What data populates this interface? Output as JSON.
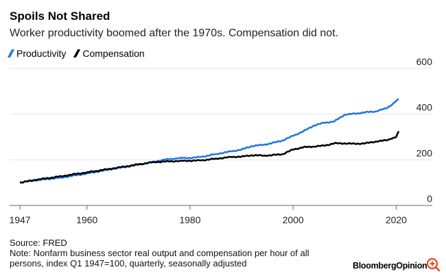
{
  "title": "Spoils Not Shared",
  "subtitle": "Worker productivity boomed after the 1970s. Compensation did not.",
  "source": "Source: FRED",
  "note": "Note: Nonfarm business sector real output and compensation per hour of all persons, index Q1 1947=100, quarterly, seasonally adjusted",
  "logo": "BloombergOpinion",
  "colors": {
    "productivity": "#1f78e6",
    "compensation": "#000000",
    "grid": "#e3e3e3",
    "axis": "#666666"
  },
  "chart_data": {
    "type": "line",
    "title": "Spoils Not Shared",
    "xlabel": "",
    "ylabel": "",
    "xlim": [
      1945,
      2027
    ],
    "ylim": [
      0,
      600
    ],
    "grid": true,
    "legend_position": "top-left",
    "x_ticks": [
      1947,
      1960,
      1980,
      2000,
      2020
    ],
    "y_ticks": [
      0,
      200,
      400,
      600
    ],
    "series": [
      {
        "name": "Productivity",
        "points": [
          [
            1947,
            100
          ],
          [
            1950,
            110
          ],
          [
            1955,
            122
          ],
          [
            1960,
            140
          ],
          [
            1965,
            160
          ],
          [
            1970,
            178
          ],
          [
            1973,
            192
          ],
          [
            1975,
            200
          ],
          [
            1978,
            208
          ],
          [
            1980,
            208
          ],
          [
            1982,
            212
          ],
          [
            1985,
            225
          ],
          [
            1988,
            237
          ],
          [
            1990,
            245
          ],
          [
            1992,
            260
          ],
          [
            1995,
            268
          ],
          [
            1998,
            285
          ],
          [
            2000,
            305
          ],
          [
            2002,
            325
          ],
          [
            2004,
            350
          ],
          [
            2006,
            362
          ],
          [
            2008,
            368
          ],
          [
            2010,
            398
          ],
          [
            2012,
            402
          ],
          [
            2014,
            408
          ],
          [
            2016,
            412
          ],
          [
            2018,
            425
          ],
          [
            2019,
            438
          ],
          [
            2020,
            458
          ],
          [
            2020.5,
            465
          ]
        ]
      },
      {
        "name": "Compensation",
        "points": [
          [
            1947,
            100
          ],
          [
            1950,
            112
          ],
          [
            1955,
            128
          ],
          [
            1960,
            145
          ],
          [
            1965,
            162
          ],
          [
            1970,
            180
          ],
          [
            1973,
            190
          ],
          [
            1975,
            192
          ],
          [
            1978,
            195
          ],
          [
            1980,
            196
          ],
          [
            1982,
            197
          ],
          [
            1985,
            205
          ],
          [
            1988,
            212
          ],
          [
            1990,
            214
          ],
          [
            1992,
            220
          ],
          [
            1995,
            218
          ],
          [
            1998,
            225
          ],
          [
            2000,
            245
          ],
          [
            2002,
            255
          ],
          [
            2004,
            258
          ],
          [
            2006,
            262
          ],
          [
            2008,
            272
          ],
          [
            2010,
            272
          ],
          [
            2012,
            270
          ],
          [
            2014,
            272
          ],
          [
            2016,
            280
          ],
          [
            2018,
            285
          ],
          [
            2019,
            292
          ],
          [
            2020,
            300
          ],
          [
            2020.5,
            325
          ]
        ]
      }
    ]
  }
}
